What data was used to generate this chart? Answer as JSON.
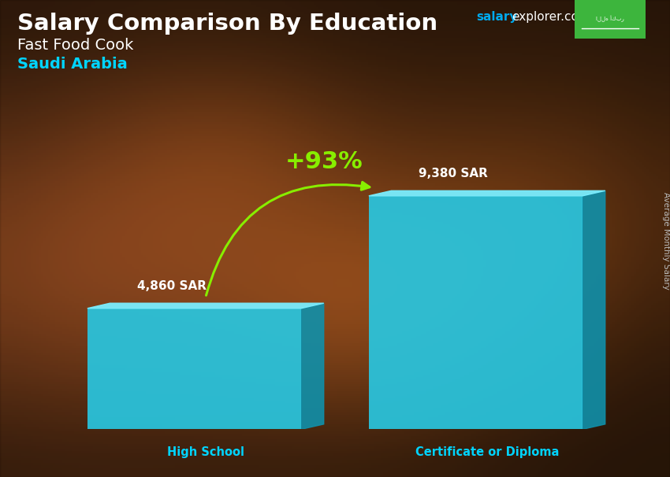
{
  "title_main": "Salary Comparison By Education",
  "subtitle1": "Fast Food Cook",
  "subtitle2": "Saudi Arabia",
  "categories": [
    "High School",
    "Certificate or Diploma"
  ],
  "values": [
    4860,
    9380
  ],
  "value_labels": [
    "4,860 SAR",
    "9,380 SAR"
  ],
  "bar_front_color": "#29c6e0",
  "bar_left_color": "#5de0f5",
  "bar_right_color": "#1090aa",
  "bar_top_color": "#7aeeff",
  "pct_label": "+93%",
  "pct_color": "#88ee00",
  "arrow_color": "#88ee00",
  "ylabel_text": "Average Monthly Salary",
  "title_color": "#ffffff",
  "subtitle1_color": "#ffffff",
  "subtitle2_color": "#00d4ff",
  "category_color": "#00d4ff",
  "value_color": "#ffffff",
  "salary_color": "#00aaff",
  "explorer_color": "#ffffff",
  "flag_bg": "#3db53d",
  "ylim_max": 11500,
  "bar_width": 0.38,
  "bg_dark_color": "#1a0e05",
  "warm_spot_color_r": 0.55,
  "warm_spot_color_g": 0.28,
  "warm_spot_color_b": 0.05
}
